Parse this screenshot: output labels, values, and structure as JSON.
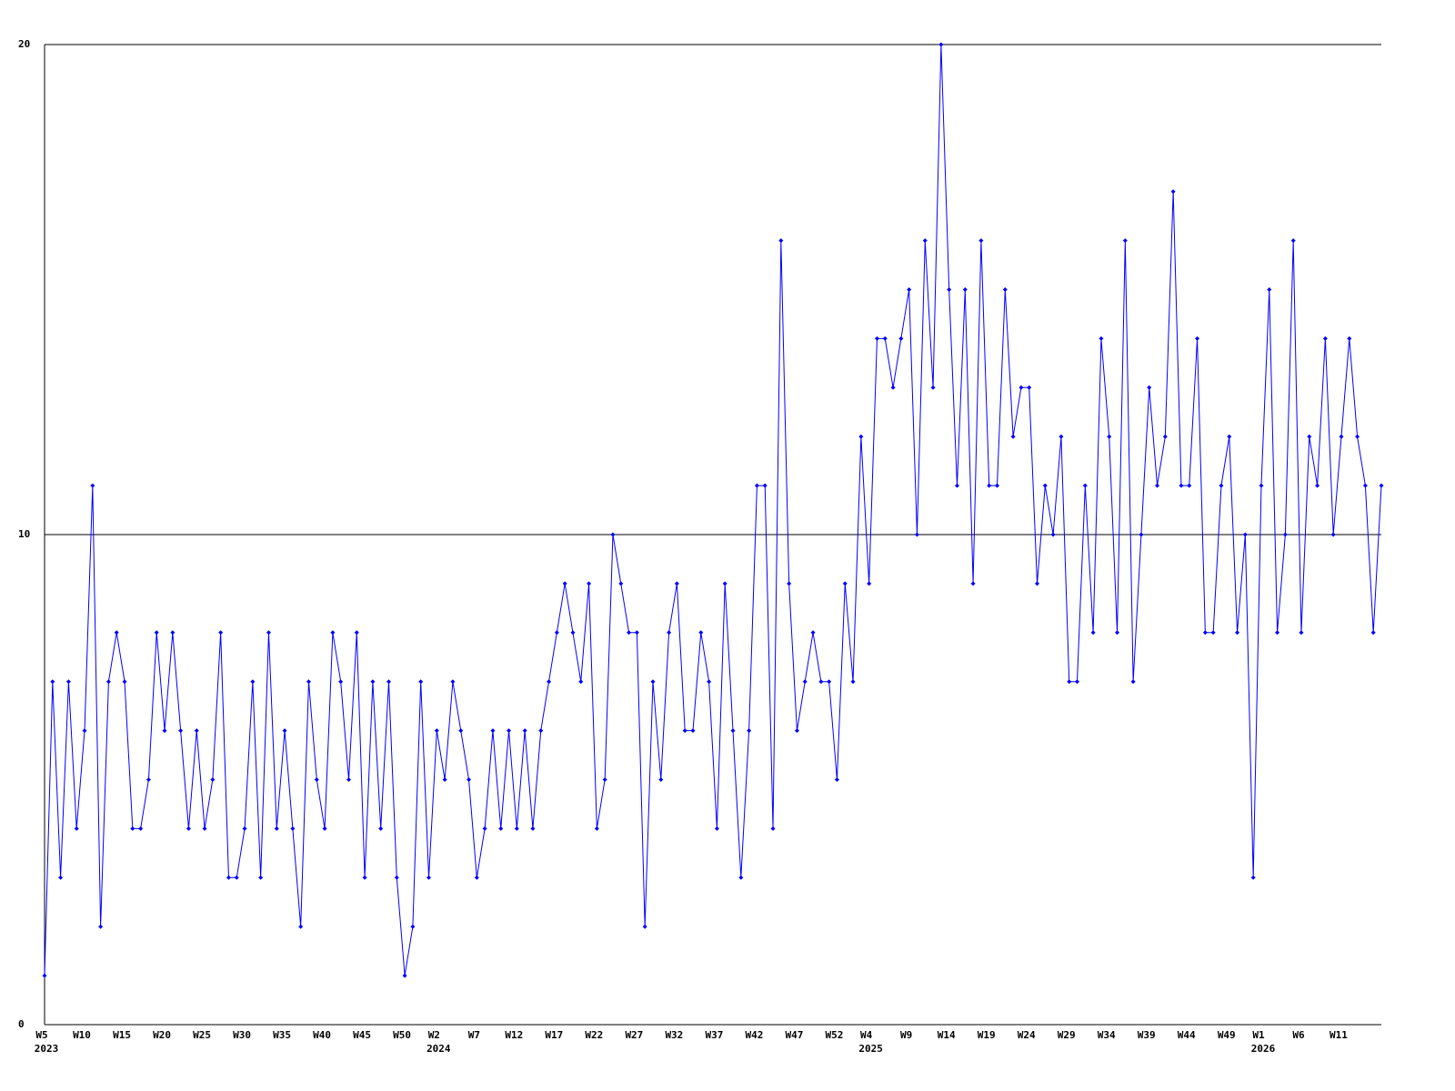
{
  "chart_data": {
    "type": "line",
    "color": "#0000ff",
    "grid": true,
    "ylim": [
      0,
      20
    ],
    "yticks": [
      0,
      10,
      20
    ],
    "categories": [
      "W5",
      null,
      null,
      null,
      null,
      "W10",
      null,
      null,
      null,
      null,
      "W15",
      null,
      null,
      null,
      null,
      "W20",
      null,
      null,
      null,
      null,
      "W25",
      null,
      null,
      null,
      null,
      "W30",
      null,
      null,
      null,
      null,
      "W35",
      null,
      null,
      null,
      null,
      "W40",
      null,
      null,
      null,
      null,
      "W45",
      null,
      null,
      null,
      null,
      "W50",
      null,
      null,
      null,
      "W2",
      null,
      null,
      null,
      null,
      "W7",
      null,
      null,
      null,
      null,
      "W12",
      null,
      null,
      null,
      null,
      "W17",
      null,
      null,
      null,
      null,
      "W22",
      null,
      null,
      null,
      null,
      "W27",
      null,
      null,
      null,
      null,
      "W32",
      null,
      null,
      null,
      null,
      "W37",
      null,
      null,
      null,
      null,
      "W42",
      null,
      null,
      null,
      null,
      "W47",
      null,
      null,
      null,
      null,
      "W52",
      null,
      null,
      null,
      "W4",
      null,
      null,
      null,
      null,
      "W9",
      null,
      null,
      null,
      null,
      "W14",
      null,
      null,
      null,
      null,
      "W19",
      null,
      null,
      null,
      null,
      "W24",
      null,
      null,
      null,
      null,
      "W29",
      null,
      null,
      null,
      null,
      "W34",
      null,
      null,
      null,
      null,
      "W39",
      null,
      null,
      null,
      null,
      "W44",
      null,
      null,
      null,
      null,
      "W49",
      null,
      null,
      null,
      "W1",
      null,
      null,
      null,
      null,
      "W6",
      null,
      null,
      null,
      null,
      "W11",
      null,
      null,
      null,
      null,
      null
    ],
    "category_years": [
      "2023",
      null,
      null,
      null,
      null,
      null,
      null,
      null,
      null,
      null,
      null,
      null,
      null,
      null,
      null,
      null,
      null,
      null,
      null,
      null,
      null,
      null,
      null,
      null,
      null,
      null,
      null,
      null,
      null,
      null,
      null,
      null,
      null,
      null,
      null,
      null,
      null,
      null,
      null,
      null,
      null,
      null,
      null,
      null,
      null,
      null,
      null,
      null,
      null,
      "2024",
      null,
      null,
      null,
      null,
      null,
      null,
      null,
      null,
      null,
      null,
      null,
      null,
      null,
      null,
      null,
      null,
      null,
      null,
      null,
      null,
      null,
      null,
      null,
      null,
      null,
      null,
      null,
      null,
      null,
      null,
      null,
      null,
      null,
      null,
      null,
      null,
      null,
      null,
      null,
      null,
      null,
      null,
      null,
      null,
      null,
      null,
      null,
      null,
      null,
      null,
      null,
      null,
      null,
      "2025",
      null,
      null,
      null,
      null,
      null,
      null,
      null,
      null,
      null,
      null,
      null,
      null,
      null,
      null,
      null,
      null,
      null,
      null,
      null,
      null,
      null,
      null,
      null,
      null,
      null,
      null,
      null,
      null,
      null,
      null,
      null,
      null,
      null,
      null,
      null,
      null,
      null,
      null,
      null,
      null,
      null,
      null,
      null,
      null,
      null,
      null,
      null,
      null,
      "2026",
      null,
      null,
      null,
      null,
      null,
      null,
      null,
      null,
      null,
      null,
      null,
      null,
      null,
      null,
      null
    ],
    "values": [
      1,
      7,
      3,
      7,
      4,
      6,
      11,
      2,
      7,
      8,
      7,
      4,
      4,
      5,
      8,
      6,
      8,
      6,
      4,
      6,
      4,
      5,
      8,
      3,
      3,
      4,
      7,
      3,
      8,
      4,
      6,
      4,
      2,
      7,
      5,
      4,
      8,
      7,
      5,
      8,
      3,
      7,
      4,
      7,
      3,
      1,
      2,
      7,
      3,
      6,
      5,
      7,
      6,
      5,
      3,
      4,
      6,
      4,
      6,
      4,
      6,
      4,
      6,
      7,
      8,
      9,
      8,
      7,
      9,
      4,
      5,
      10,
      9,
      8,
      8,
      2,
      7,
      5,
      8,
      9,
      6,
      6,
      8,
      7,
      4,
      9,
      6,
      3,
      6,
      11,
      11,
      4,
      16,
      9,
      6,
      7,
      8,
      7,
      7,
      5,
      9,
      7,
      12,
      9,
      14,
      14,
      13,
      14,
      15,
      10,
      16,
      13,
      20,
      15,
      11,
      15,
      9,
      16,
      11,
      11,
      15,
      12,
      13,
      13,
      9,
      11,
      10,
      12,
      7,
      7,
      11,
      8,
      14,
      12,
      8,
      16,
      7,
      10,
      13,
      11,
      12,
      17,
      11,
      11,
      14,
      8,
      8,
      11,
      12,
      8,
      10,
      3,
      11,
      15,
      8,
      10,
      16,
      8,
      12,
      11,
      14,
      10,
      12,
      14,
      12,
      11,
      8,
      11
    ]
  }
}
